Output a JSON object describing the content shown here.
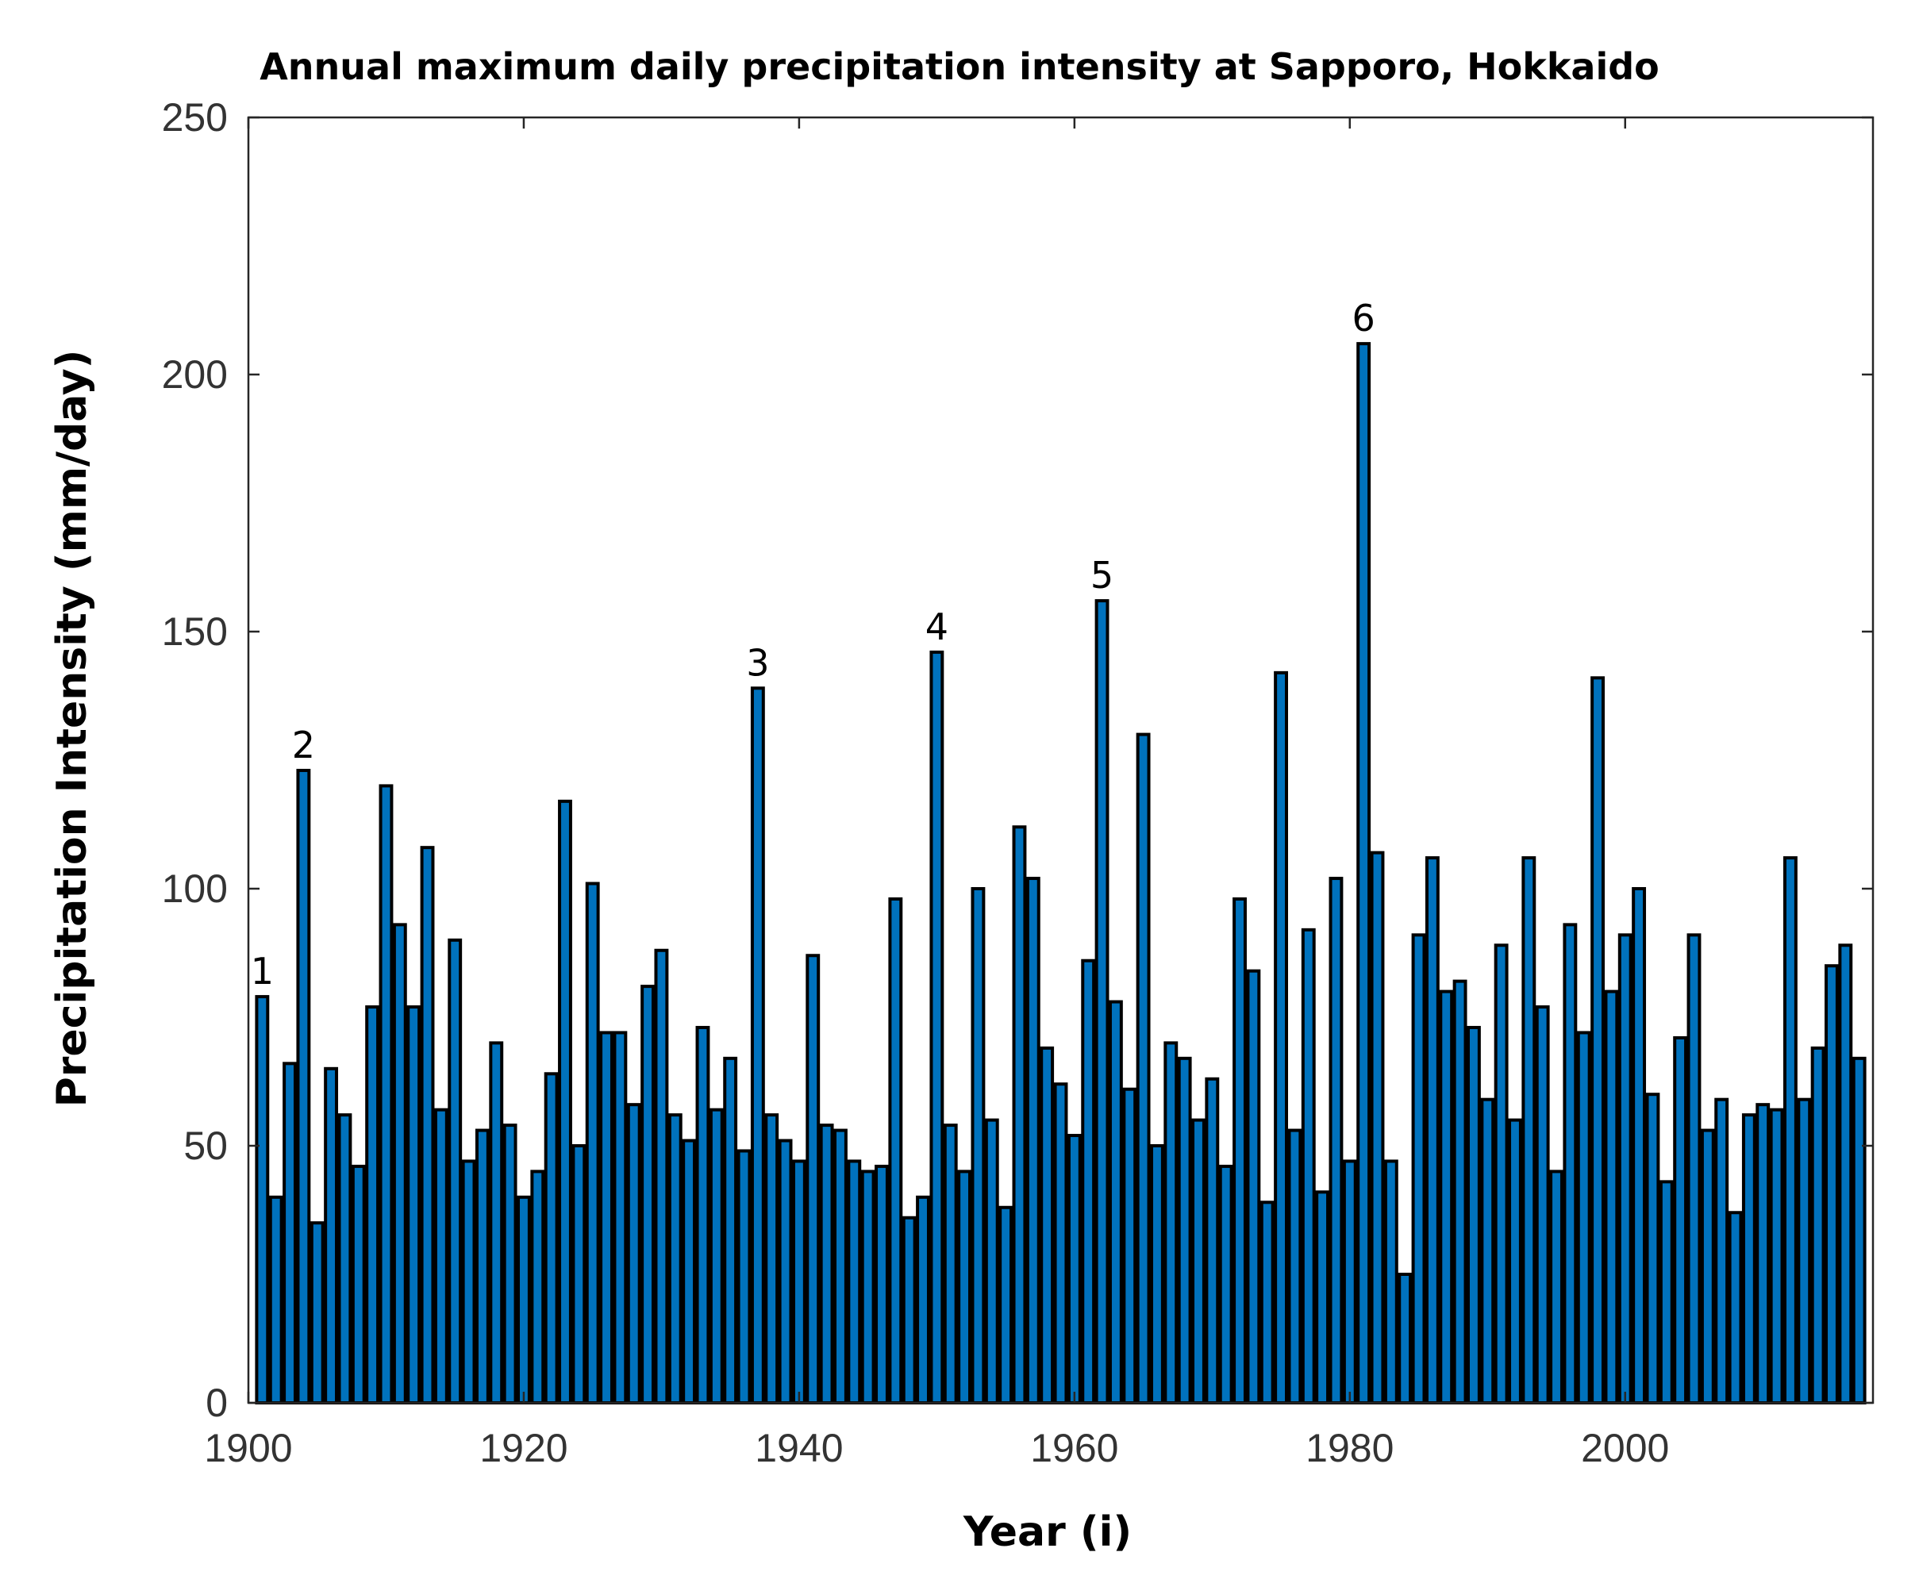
{
  "chart_data": {
    "type": "bar",
    "title": "Annual maximum daily precipitation intensity at Sapporo, Hokkaido",
    "xlabel": "Year (i)",
    "ylabel": "Precipitation Intensity (mm/day)",
    "xlim": [
      1900,
      2018
    ],
    "ylim": [
      0,
      250
    ],
    "grid": false,
    "bar_color": "#0072BD",
    "x_ticks": [
      1900,
      1920,
      1940,
      1960,
      1980,
      2000
    ],
    "y_ticks": [
      0,
      50,
      100,
      150,
      200,
      250
    ],
    "start_year": 1901,
    "values": [
      79,
      40,
      66,
      123,
      35,
      65,
      56,
      46,
      77,
      120,
      93,
      77,
      108,
      57,
      90,
      47,
      53,
      70,
      54,
      40,
      45,
      64,
      117,
      50,
      101,
      72,
      72,
      58,
      81,
      88,
      56,
      51,
      73,
      57,
      67,
      49,
      139,
      56,
      51,
      47,
      87,
      54,
      53,
      47,
      45,
      46,
      98,
      36,
      40,
      146,
      54,
      45,
      100,
      55,
      38,
      112,
      102,
      69,
      62,
      52,
      86,
      156,
      78,
      61,
      130,
      50,
      70,
      67,
      55,
      63,
      46,
      98,
      84,
      39,
      142,
      53,
      92,
      41,
      102,
      47,
      206,
      107,
      47,
      25,
      91,
      106,
      80,
      82,
      73,
      59,
      89,
      55,
      106,
      77,
      45,
      93,
      72,
      141,
      80,
      91,
      100,
      60,
      43,
      71,
      91,
      53,
      59,
      37,
      56,
      58,
      57,
      106,
      59,
      69,
      85,
      89,
      67
    ],
    "annotations": [
      {
        "label": "1",
        "year": 1901,
        "value": 79
      },
      {
        "label": "2",
        "year": 1904,
        "value": 123
      },
      {
        "label": "3",
        "year": 1937,
        "value": 139
      },
      {
        "label": "4",
        "year": 1950,
        "value": 146
      },
      {
        "label": "5",
        "year": 1962,
        "value": 156
      },
      {
        "label": "6",
        "year": 1981,
        "value": 206
      }
    ]
  }
}
